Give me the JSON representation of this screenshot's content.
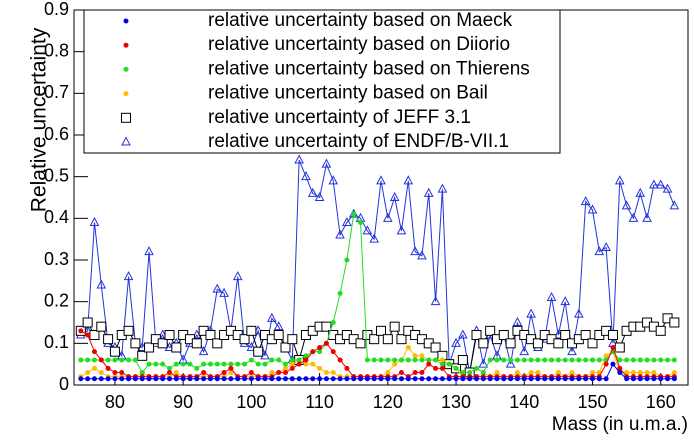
{
  "chart_data": {
    "type": "line",
    "x_label": "Mass (in u.m.a.)",
    "y_label": "Relative uncertainty",
    "xlim": [
      74,
      164
    ],
    "ylim": [
      0,
      0.9
    ],
    "xticks": [
      80,
      90,
      100,
      110,
      120,
      130,
      140,
      150,
      160
    ],
    "yticks": [
      0,
      0.1,
      0.2,
      0.3,
      0.4,
      0.5,
      0.6,
      0.7,
      0.8,
      0.9
    ],
    "x": [
      75,
      76,
      77,
      78,
      79,
      80,
      81,
      82,
      83,
      84,
      85,
      86,
      87,
      88,
      89,
      90,
      91,
      92,
      93,
      94,
      95,
      96,
      97,
      98,
      99,
      100,
      101,
      102,
      103,
      104,
      105,
      106,
      107,
      108,
      109,
      110,
      111,
      112,
      113,
      114,
      115,
      116,
      117,
      118,
      119,
      120,
      121,
      122,
      123,
      124,
      125,
      126,
      127,
      128,
      129,
      130,
      131,
      132,
      133,
      134,
      135,
      136,
      137,
      138,
      139,
      140,
      141,
      142,
      143,
      144,
      145,
      146,
      147,
      148,
      149,
      150,
      151,
      152,
      153,
      154,
      155,
      156,
      157,
      158,
      159,
      160,
      161,
      162
    ],
    "series": [
      {
        "name": "relative uncertainty based on Maeck",
        "color": "#0000ee",
        "marker": "dot",
        "values": [
          0.015,
          0.015,
          0.015,
          0.015,
          0.015,
          0.015,
          0.015,
          0.015,
          0.015,
          0.015,
          0.015,
          0.015,
          0.015,
          0.015,
          0.015,
          0.015,
          0.015,
          0.015,
          0.015,
          0.015,
          0.015,
          0.015,
          0.015,
          0.015,
          0.015,
          0.015,
          0.015,
          0.015,
          0.015,
          0.015,
          0.015,
          0.015,
          0.015,
          0.015,
          0.015,
          0.015,
          0.015,
          0.015,
          0.015,
          0.015,
          0.015,
          0.015,
          0.015,
          0.015,
          0.015,
          0.015,
          0.015,
          0.015,
          0.015,
          0.015,
          0.015,
          0.015,
          0.015,
          0.015,
          0.015,
          0.015,
          0.015,
          0.015,
          0.015,
          0.015,
          0.015,
          0.015,
          0.015,
          0.015,
          0.015,
          0.015,
          0.015,
          0.015,
          0.015,
          0.015,
          0.015,
          0.015,
          0.015,
          0.015,
          0.015,
          0.015,
          0.015,
          0.015,
          0.05,
          0.03,
          0.015,
          0.015,
          0.015,
          0.015,
          0.015,
          0.015,
          0.015,
          0.015
        ]
      },
      {
        "name": "relative uncertainty based on Diiorio",
        "color": "#ee0000",
        "marker": "dot",
        "values": [
          0.13,
          0.12,
          0.08,
          0.06,
          0.04,
          0.03,
          0.03,
          0.02,
          0.02,
          0.02,
          0.02,
          0.02,
          0.02,
          0.03,
          0.02,
          0.02,
          0.02,
          0.02,
          0.03,
          0.02,
          0.02,
          0.03,
          0.04,
          0.02,
          0.02,
          0.03,
          0.02,
          0.02,
          0.02,
          0.03,
          0.03,
          0.04,
          0.05,
          0.06,
          0.08,
          0.09,
          0.1,
          0.08,
          0.06,
          0.04,
          0.02,
          0.02,
          0.02,
          0.02,
          0.02,
          0.02,
          0.02,
          0.03,
          0.02,
          0.03,
          0.03,
          0.05,
          0.04,
          0.04,
          0.02,
          0.02,
          0.02,
          0.02,
          0.02,
          0.02,
          0.02,
          0.02,
          0.02,
          0.02,
          0.02,
          0.02,
          0.02,
          0.02,
          0.02,
          0.02,
          0.02,
          0.02,
          0.02,
          0.02,
          0.02,
          0.02,
          0.02,
          0.05,
          0.09,
          0.04,
          0.02,
          0.02,
          0.02,
          0.02,
          0.02,
          0.02,
          0.02,
          0.02
        ]
      },
      {
        "name": "relative uncertainty based on Thierens",
        "color": "#22dd22",
        "marker": "dot",
        "values": [
          0.06,
          0.06,
          0.06,
          0.06,
          0.06,
          0.06,
          0.06,
          0.06,
          0.06,
          0.03,
          0.05,
          0.05,
          0.05,
          0.04,
          0.05,
          0.05,
          0.05,
          0.04,
          0.05,
          0.05,
          0.05,
          0.05,
          0.05,
          0.05,
          0.05,
          0.06,
          0.05,
          0.05,
          0.06,
          0.06,
          0.05,
          0.06,
          0.06,
          0.07,
          0.08,
          0.08,
          0.1,
          0.15,
          0.22,
          0.3,
          0.41,
          0.39,
          0.06,
          0.06,
          0.06,
          0.06,
          0.06,
          0.06,
          0.06,
          0.06,
          0.06,
          0.06,
          0.06,
          0.05,
          0.05,
          0.04,
          0.03,
          0.03,
          0.04,
          0.03,
          0.06,
          0.06,
          0.06,
          0.06,
          0.06,
          0.06,
          0.06,
          0.06,
          0.06,
          0.06,
          0.06,
          0.06,
          0.06,
          0.06,
          0.06,
          0.06,
          0.06,
          0.06,
          0.08,
          0.06,
          0.06,
          0.06,
          0.06,
          0.06,
          0.06,
          0.06,
          0.06,
          0.06
        ]
      },
      {
        "name": "relative uncertainty based on Bail",
        "color": "#ffbb00",
        "marker": "dot",
        "values": [
          0.02,
          0.03,
          0.04,
          0.03,
          0.02,
          0.02,
          0.02,
          0.02,
          0.02,
          0.03,
          0.02,
          0.02,
          0.02,
          0.02,
          0.03,
          0.02,
          0.02,
          0.02,
          0.02,
          0.02,
          0.02,
          0.02,
          0.03,
          0.02,
          0.02,
          0.02,
          0.02,
          0.02,
          0.03,
          0.03,
          0.04,
          0.05,
          0.06,
          0.05,
          0.05,
          0.04,
          0.03,
          0.03,
          0.02,
          0.02,
          0.02,
          0.02,
          0.02,
          0.02,
          0.02,
          0.03,
          0.05,
          0.06,
          0.09,
          0.07,
          0.07,
          0.06,
          0.06,
          0.06,
          0.05,
          0.04,
          0.02,
          0.02,
          0.02,
          0.03,
          0.02,
          0.03,
          0.02,
          0.02,
          0.03,
          0.02,
          0.03,
          0.03,
          0.02,
          0.02,
          0.03,
          0.02,
          0.03,
          0.02,
          0.02,
          0.03,
          0.03,
          0.07,
          0.08,
          0.03,
          0.03,
          0.03,
          0.03,
          0.03,
          0.03,
          0.02,
          0.02,
          0.03
        ]
      },
      {
        "name": "relative uncertainty of JEFF 3.1",
        "color": "#000000",
        "marker": "square",
        "values": [
          0.13,
          0.15,
          0.12,
          0.14,
          0.11,
          0.08,
          0.12,
          0.13,
          0.1,
          0.07,
          0.09,
          0.11,
          0.1,
          0.12,
          0.09,
          0.12,
          0.11,
          0.1,
          0.13,
          0.12,
          0.1,
          0.12,
          0.13,
          0.12,
          0.11,
          0.13,
          0.08,
          0.12,
          0.11,
          0.12,
          0.09,
          0.11,
          0.06,
          0.12,
          0.13,
          0.14,
          0.14,
          0.12,
          0.11,
          0.12,
          0.11,
          0.1,
          0.12,
          0.11,
          0.13,
          0.11,
          0.14,
          0.11,
          0.13,
          0.12,
          0.11,
          0.1,
          0.09,
          0.07,
          0.05,
          0.04,
          0.06,
          0.03,
          0.12,
          0.1,
          0.13,
          0.11,
          0.12,
          0.1,
          0.13,
          0.12,
          0.11,
          0.1,
          0.12,
          0.11,
          0.1,
          0.12,
          0.1,
          0.11,
          0.12,
          0.1,
          0.12,
          0.13,
          0.12,
          0.09,
          0.13,
          0.14,
          0.14,
          0.15,
          0.14,
          0.13,
          0.16,
          0.15
        ]
      },
      {
        "name": "relative uncertainty of ENDF/B-VII.1",
        "color": "#2233dd",
        "marker": "triangle",
        "values": [
          0.12,
          0.13,
          0.39,
          0.24,
          0.1,
          0.09,
          0.07,
          0.26,
          0.1,
          0.09,
          0.32,
          0.1,
          0.12,
          0.09,
          0.1,
          0.06,
          0.1,
          0.12,
          0.08,
          0.13,
          0.23,
          0.22,
          0.13,
          0.26,
          0.1,
          0.09,
          0.13,
          0.07,
          0.16,
          0.14,
          0.09,
          0.06,
          0.54,
          0.5,
          0.46,
          0.45,
          0.53,
          0.49,
          0.36,
          0.39,
          0.41,
          0.4,
          0.37,
          0.35,
          0.49,
          0.4,
          0.45,
          0.37,
          0.49,
          0.32,
          0.31,
          0.46,
          0.2,
          0.47,
          0.05,
          0.1,
          0.12,
          0.03,
          0.13,
          0.05,
          0.12,
          0.07,
          0.12,
          0.05,
          0.15,
          0.08,
          0.17,
          0.09,
          0.11,
          0.21,
          0.12,
          0.2,
          0.08,
          0.17,
          0.44,
          0.42,
          0.32,
          0.33,
          0.1,
          0.49,
          0.43,
          0.4,
          0.46,
          0.4,
          0.48,
          0.48,
          0.47,
          0.43
        ]
      }
    ]
  }
}
